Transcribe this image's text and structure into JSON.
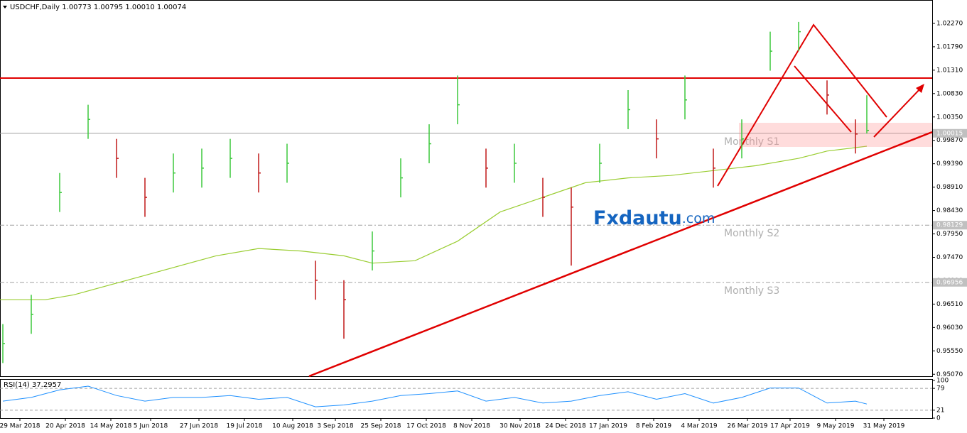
{
  "chart_data": {
    "type": "ohlc",
    "title": "USDCHF,Daily  1.00773 1.00795 1.00010 1.00074",
    "watermark": "Fxdautu",
    "watermark_suffix": ".com",
    "up_color": "#3cc83c",
    "down_color": "#c01818",
    "x": [
      0,
      10,
      20,
      30,
      40,
      50,
      60,
      70,
      80,
      90,
      100,
      110,
      120,
      130,
      140,
      150,
      160,
      170,
      180,
      190,
      200,
      210,
      220,
      230,
      240,
      250,
      260,
      270,
      280,
      290,
      300,
      304
    ],
    "close": [
      0.957,
      0.963,
      0.988,
      1.003,
      0.995,
      0.987,
      0.992,
      0.993,
      0.995,
      0.992,
      0.994,
      0.97,
      0.966,
      0.976,
      0.991,
      0.998,
      1.006,
      0.993,
      0.994,
      0.987,
      0.985,
      0.994,
      1.005,
      0.999,
      1.007,
      0.993,
      0.999,
      1.017,
      1.021,
      1.008,
      1.0,
      1.00074
    ],
    "high": [
      0.961,
      0.967,
      0.992,
      1.006,
      0.999,
      0.991,
      0.996,
      0.997,
      0.999,
      0.996,
      0.998,
      0.974,
      0.97,
      0.98,
      0.995,
      1.002,
      1.012,
      0.997,
      0.998,
      0.991,
      0.989,
      0.998,
      1.009,
      1.003,
      1.012,
      0.997,
      1.003,
      1.021,
      1.023,
      1.011,
      1.003,
      1.00795
    ],
    "low": [
      0.953,
      0.959,
      0.984,
      0.999,
      0.991,
      0.983,
      0.988,
      0.989,
      0.991,
      0.988,
      0.99,
      0.966,
      0.958,
      0.972,
      0.987,
      0.994,
      1.002,
      0.989,
      0.99,
      0.983,
      0.973,
      0.99,
      1.001,
      0.995,
      1.003,
      0.989,
      0.995,
      1.013,
      1.017,
      1.004,
      0.996,
      1.0001
    ],
    "ma": {
      "color": "#9acd32",
      "x": [
        -1,
        15,
        25,
        50,
        75,
        90,
        105,
        120,
        130,
        145,
        160,
        175,
        190,
        205,
        220,
        235,
        250,
        265,
        280,
        290,
        304
      ],
      "values": [
        0.966,
        0.966,
        0.967,
        0.971,
        0.975,
        0.9765,
        0.976,
        0.975,
        0.9735,
        0.974,
        0.978,
        0.984,
        0.987,
        0.99,
        0.991,
        0.9915,
        0.9925,
        0.9935,
        0.995,
        0.9965,
        0.9975
      ]
    },
    "xlim": [
      -1,
      327
    ],
    "ylim": [
      0.9503,
      1.0275
    ],
    "yticks": [
      {
        "value": 1.0227,
        "label": "1.02270"
      },
      {
        "value": 1.0179,
        "label": "1.01790"
      },
      {
        "value": 1.0131,
        "label": "1.01310"
      },
      {
        "value": 1.0083,
        "label": "1.00830"
      },
      {
        "value": 1.0035,
        "label": "1.00350"
      },
      {
        "value": 0.9987,
        "label": "0.99870"
      },
      {
        "value": 0.9939,
        "label": "0.99390"
      },
      {
        "value": 0.9891,
        "label": "0.98910"
      },
      {
        "value": 0.9843,
        "label": "0.98430"
      },
      {
        "value": 0.9795,
        "label": "0.97950"
      },
      {
        "value": 0.9747,
        "label": "0.97470"
      },
      {
        "value": 0.9699,
        "label": "0.96990"
      },
      {
        "value": 0.9651,
        "label": "0.96510"
      },
      {
        "value": 0.9603,
        "label": "0.96030"
      },
      {
        "value": 0.9555,
        "label": "0.95550"
      },
      {
        "value": 0.9507,
        "label": "0.95070"
      }
    ],
    "levels": [
      {
        "value": 1.00015,
        "label": "1.00015",
        "name": "Monthly S1"
      },
      {
        "value": 0.98129,
        "label": "0.98129",
        "name": "Monthly S2"
      },
      {
        "value": 0.96956,
        "label": "0.96956",
        "name": "Monthly S3"
      }
    ],
    "xticks": [
      {
        "value": 6,
        "label": "29 Mar 2018"
      },
      {
        "value": 22,
        "label": "20 Apr 2018"
      },
      {
        "value": 38,
        "label": "14 May 2018"
      },
      {
        "value": 52,
        "label": "5 Jun 2018"
      },
      {
        "value": 69,
        "label": "27 Jun 2018"
      },
      {
        "value": 85,
        "label": "19 Jul 2018"
      },
      {
        "value": 102,
        "label": "10 Aug 2018"
      },
      {
        "value": 117,
        "label": "3 Sep 2018"
      },
      {
        "value": 133,
        "label": "25 Sep 2018"
      },
      {
        "value": 149,
        "label": "17 Oct 2018"
      },
      {
        "value": 165,
        "label": "8 Nov 2018"
      },
      {
        "value": 182,
        "label": "30 Nov 2018"
      },
      {
        "value": 198,
        "label": "24 Dec 2018"
      },
      {
        "value": 213,
        "label": "17 Jan 2019"
      },
      {
        "value": 229,
        "label": "8 Feb 2019"
      },
      {
        "value": 245,
        "label": "4 Mar 2019"
      },
      {
        "value": 262,
        "label": "26 Mar 2019"
      },
      {
        "value": 277,
        "label": "17 Apr 2019"
      },
      {
        "value": 293,
        "label": "9 May 2019"
      },
      {
        "value": 310,
        "label": "31 May 2019"
      }
    ],
    "rsi": {
      "title": "RSI(14) 37.2957",
      "color": "#1e90ff",
      "values": [
        45,
        55,
        75,
        85,
        60,
        45,
        55,
        55,
        60,
        50,
        55,
        30,
        35,
        45,
        60,
        65,
        72,
        45,
        55,
        40,
        45,
        60,
        70,
        50,
        65,
        40,
        55,
        80,
        80,
        40,
        45,
        37.2957
      ],
      "ylim": [
        0,
        100
      ],
      "yticks": [
        100,
        79,
        21,
        0
      ],
      "levels": [
        79,
        21
      ]
    }
  }
}
